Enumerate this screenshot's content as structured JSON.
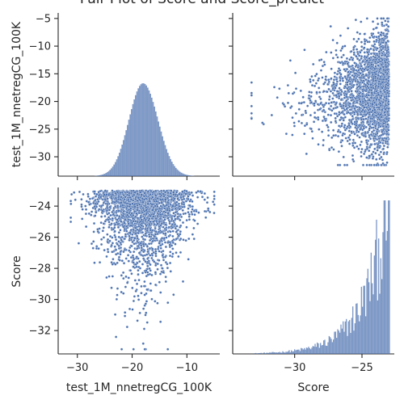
{
  "chart_data": {
    "type": "pairplot",
    "title": "Pair Plot of Score and Score_predict",
    "color": "#4c72b0",
    "variables": [
      "test_1M_nnetregCG_100K",
      "Score"
    ],
    "ranges": {
      "test_1M_nnetregCG_100K": [
        -33.5,
        -4
      ],
      "Score": [
        -33.5,
        -22.5
      ]
    },
    "ticks": {
      "test_1M_nnetregCG_100K": [
        -30,
        -25,
        -20,
        -15,
        -10,
        -5
      ],
      "test_1M_nnetregCG_100K_bottom": [
        -30,
        -20,
        -10
      ],
      "Score": [
        -32,
        -30,
        -28,
        -26,
        -24
      ],
      "Score_bottom": [
        -30,
        -25
      ]
    },
    "panels": [
      {
        "row": 0,
        "col": 0,
        "kind": "hist",
        "var": "test_1M_nnetregCG_100K",
        "desc": "Approximately normal histogram centered near -18, spanning about -31 to -7"
      },
      {
        "row": 0,
        "col": 1,
        "kind": "scatter",
        "x": "Score",
        "y": "test_1M_nnetregCG_100K",
        "desc": "Dense scatter; Score from about -33 to -23, predicted values roughly -32 to -5"
      },
      {
        "row": 1,
        "col": 0,
        "kind": "scatter",
        "x": "test_1M_nnetregCG_100K",
        "y": "Score",
        "desc": "Dense scatter; predicted values from about -31 to -5, Score from about -33 to -23"
      },
      {
        "row": 1,
        "col": 1,
        "kind": "hist",
        "var": "Score",
        "desc": "Right-skewed histogram rising sharply toward Score near -23"
      }
    ],
    "legend": "none",
    "grid": false
  },
  "labels": {
    "title": "Pair Plot of Score and Score_predict",
    "y_top": "test_1M_nnetregCG_100K",
    "y_bottom": "Score",
    "x_left": "test_1M_nnetregCG_100K",
    "x_right": "Score"
  }
}
